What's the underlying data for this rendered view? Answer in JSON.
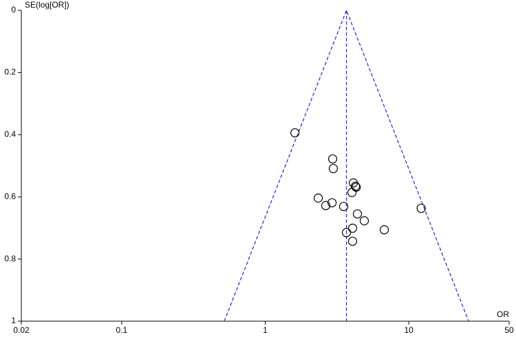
{
  "chart_data": {
    "type": "scatter",
    "y_label": "SE(log[OR])",
    "x_label": "OR",
    "x": [
      1.61,
      2.95,
      2.98,
      4.11,
      4.25,
      4.3,
      4.02,
      2.34,
      2.64,
      2.92,
      3.52,
      12.2,
      4.39,
      4.9,
      6.75,
      4.06,
      3.68,
      4.06
    ],
    "values": [
      0.394,
      0.478,
      0.509,
      0.555,
      0.566,
      0.569,
      0.586,
      0.604,
      0.628,
      0.619,
      0.631,
      0.637,
      0.655,
      0.677,
      0.706,
      0.701,
      0.715,
      0.743
    ],
    "pooled": 3.68,
    "xscale": "log",
    "y_reversed": true,
    "xlim": [
      0.02,
      50
    ],
    "xticks": [
      0.02,
      0.1,
      1,
      10,
      50
    ],
    "ylim": [
      0,
      1
    ],
    "yticks": [
      0,
      0.2,
      0.4,
      0.6,
      0.8,
      1
    ],
    "marker_color": "#000000",
    "funnel_color": "#3333cc"
  }
}
